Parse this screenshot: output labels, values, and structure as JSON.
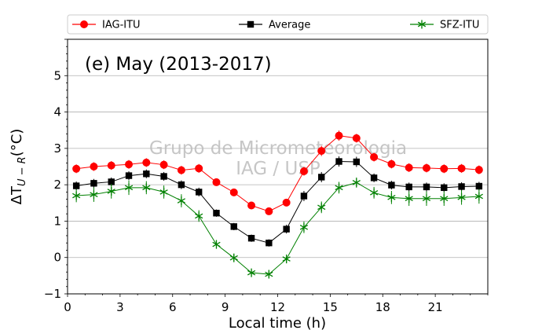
{
  "chart_data": {
    "type": "line",
    "title": "(e) May (2013-2017)",
    "xlabel": "Local time (h)",
    "ylabel": "ΔT",
    "ylabel_subscript": "U − R",
    "ylabel_unit": "(°C)",
    "xlim": [
      0,
      24
    ],
    "ylim": [
      -1,
      6
    ],
    "xticks": [
      0,
      3,
      6,
      9,
      12,
      15,
      18,
      21
    ],
    "yticks": [
      -1,
      0,
      1,
      2,
      3,
      4,
      5
    ],
    "grid": "horizontal",
    "legend_position": "top, outside plot",
    "watermark": [
      "Grupo de Micrometeorologia",
      "IAG / USP"
    ],
    "x": [
      0.5,
      1.5,
      2.5,
      3.5,
      4.5,
      5.5,
      6.5,
      7.5,
      8.5,
      9.5,
      10.5,
      11.5,
      12.5,
      13.5,
      14.5,
      15.5,
      16.5,
      17.5,
      18.5,
      19.5,
      20.5,
      21.5,
      22.5,
      23.5
    ],
    "series": [
      {
        "name": "IAG-ITU",
        "color": "#ff0000",
        "marker": "circle",
        "values": [
          2.44,
          2.5,
          2.53,
          2.56,
          2.61,
          2.55,
          2.4,
          2.45,
          2.07,
          1.79,
          1.43,
          1.27,
          1.51,
          2.37,
          2.93,
          3.35,
          3.28,
          2.76,
          2.57,
          2.47,
          2.46,
          2.44,
          2.45,
          2.41
        ],
        "errors": [
          0.12,
          0.12,
          0.12,
          0.12,
          0.12,
          0.12,
          0.12,
          0.12,
          0.1,
          0.1,
          0.1,
          0.1,
          0.1,
          0.12,
          0.14,
          0.14,
          0.12,
          0.12,
          0.12,
          0.12,
          0.12,
          0.12,
          0.12,
          0.12
        ]
      },
      {
        "name": "Average",
        "color": "#000000",
        "marker": "square",
        "values": [
          1.97,
          2.04,
          2.08,
          2.25,
          2.3,
          2.23,
          2.0,
          1.8,
          1.22,
          0.85,
          0.53,
          0.4,
          0.78,
          1.69,
          2.21,
          2.64,
          2.63,
          2.19,
          1.99,
          1.94,
          1.94,
          1.92,
          1.95,
          1.96
        ],
        "errors": [
          0.12,
          0.12,
          0.12,
          0.12,
          0.12,
          0.12,
          0.12,
          0.12,
          0.1,
          0.1,
          0.1,
          0.1,
          0.12,
          0.14,
          0.14,
          0.14,
          0.14,
          0.12,
          0.12,
          0.12,
          0.12,
          0.12,
          0.12,
          0.12
        ]
      },
      {
        "name": "SFZ-ITU",
        "color": "#008000",
        "marker": "star",
        "values": [
          1.7,
          1.73,
          1.82,
          1.92,
          1.92,
          1.8,
          1.56,
          1.14,
          0.36,
          -0.01,
          -0.42,
          -0.46,
          -0.04,
          0.83,
          1.38,
          1.92,
          2.06,
          1.78,
          1.65,
          1.62,
          1.62,
          1.62,
          1.65,
          1.68
        ],
        "errors": [
          0.18,
          0.2,
          0.2,
          0.2,
          0.18,
          0.18,
          0.18,
          0.16,
          0.12,
          0.1,
          0.1,
          0.1,
          0.12,
          0.16,
          0.16,
          0.16,
          0.14,
          0.16,
          0.18,
          0.2,
          0.2,
          0.2,
          0.2,
          0.2
        ]
      }
    ]
  }
}
